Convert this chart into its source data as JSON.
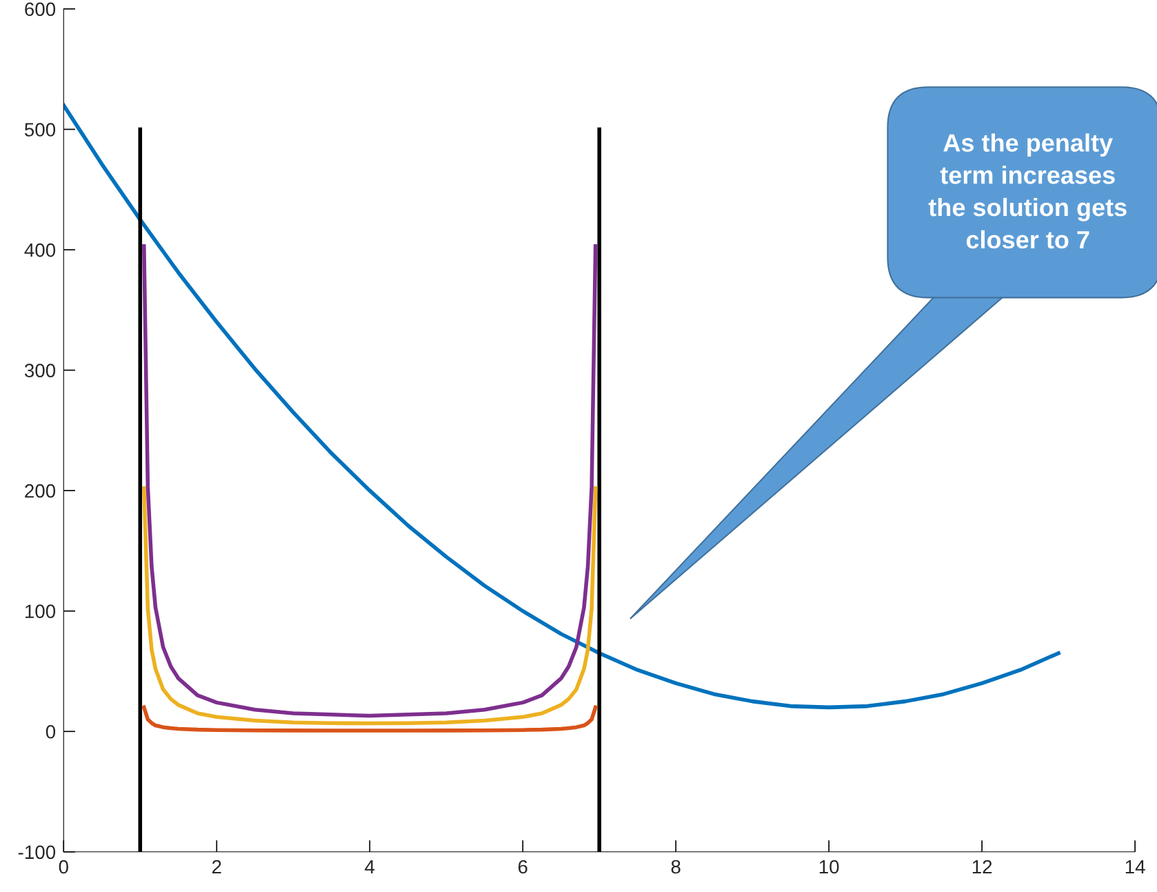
{
  "chart_data": {
    "type": "line",
    "xlim": [
      0,
      14
    ],
    "ylim": [
      -100,
      600
    ],
    "xticks": [
      0,
      2,
      4,
      6,
      8,
      10,
      12,
      14
    ],
    "yticks": [
      -100,
      0,
      100,
      200,
      300,
      400,
      500,
      600
    ],
    "grid": false,
    "legend": false,
    "marker": "none",
    "line_style": "solid",
    "series": [
      {
        "color": "#0072bd",
        "x": [
          0,
          0.5,
          1,
          1.5,
          2,
          2.5,
          3,
          3.5,
          4,
          4.5,
          5,
          5.5,
          6,
          6.5,
          7,
          7.5,
          8,
          8.5,
          9,
          9.5,
          10,
          10.5,
          11,
          11.5,
          12,
          12.5,
          13
        ],
        "values": [
          520,
          471,
          425,
          381,
          340,
          301,
          265,
          231,
          200,
          171,
          145,
          121,
          100,
          81,
          65,
          51,
          40,
          31,
          25,
          21,
          20,
          21,
          25,
          31,
          40,
          51,
          65
        ]
      },
      {
        "color": "#000000",
        "x": [
          1,
          1
        ],
        "values": [
          -100,
          500
        ]
      },
      {
        "color": "#000000",
        "x": [
          7,
          7
        ],
        "values": [
          -100,
          500
        ]
      },
      {
        "color": "#d95319",
        "x": [
          1.05,
          1.1,
          1.15,
          1.2,
          1.3,
          1.4,
          1.5,
          1.75,
          2,
          2.5,
          3,
          3.5,
          4,
          4.5,
          5,
          5.5,
          6,
          6.25,
          6.5,
          6.6,
          6.7,
          6.8,
          6.85,
          6.9,
          6.95
        ],
        "values": [
          20,
          10,
          7,
          5,
          3.5,
          2.7,
          2.2,
          1.5,
          1.2,
          0.9,
          0.8,
          0.7,
          0.7,
          0.7,
          0.8,
          0.9,
          1.2,
          1.5,
          2.2,
          2.7,
          3.5,
          5,
          7,
          10,
          20
        ]
      },
      {
        "color": "#edb120",
        "x": [
          1.05,
          1.1,
          1.15,
          1.2,
          1.3,
          1.4,
          1.5,
          1.75,
          2,
          2.5,
          3,
          3.5,
          4,
          4.5,
          5,
          5.5,
          6,
          6.25,
          6.5,
          6.6,
          6.7,
          6.8,
          6.85,
          6.9,
          6.95
        ],
        "values": [
          202,
          102,
          68,
          52,
          35,
          27,
          22,
          15,
          12,
          9,
          7.5,
          6.9,
          6.7,
          6.9,
          7.5,
          9,
          12,
          15,
          22,
          27,
          35,
          52,
          68,
          102,
          202
        ]
      },
      {
        "color": "#7e2f8e",
        "x": [
          1.05,
          1.1,
          1.15,
          1.2,
          1.3,
          1.4,
          1.5,
          1.75,
          2,
          2.5,
          3,
          3.5,
          4,
          4.5,
          5,
          5.5,
          6,
          6.25,
          6.5,
          6.6,
          6.7,
          6.8,
          6.85,
          6.9,
          6.95
        ],
        "values": [
          403,
          203,
          137,
          103,
          70,
          54,
          44,
          30,
          24,
          18,
          15,
          14,
          13,
          14,
          15,
          18,
          24,
          30,
          44,
          54,
          70,
          103,
          137,
          203,
          403
        ]
      }
    ],
    "annotations": [
      "As the penalty\nterm increases\nthe solution gets\ncloser to 7"
    ]
  }
}
